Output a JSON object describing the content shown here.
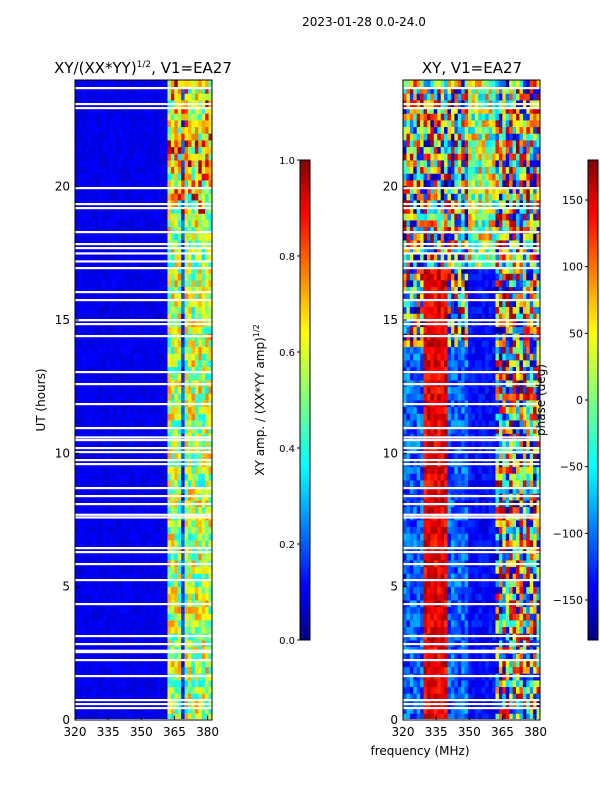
{
  "figure": {
    "suptitle": "2023-01-28 0.0-24.0",
    "xlabel": "frequency (MHz)"
  },
  "chart_data": [
    {
      "type": "heatmap",
      "title": "XY/(XX*YY)^1/2, V1=EA27",
      "title_main": "XY/(XX*YY)",
      "title_exp": "1/2",
      "title_tail": ", V1=EA27",
      "ylabel": "UT (hours)",
      "xlim": [
        320,
        382
      ],
      "ylim": [
        0,
        24
      ],
      "xticks": [
        320,
        335,
        350,
        365,
        380
      ],
      "yticks": [
        0,
        5,
        10,
        15,
        20
      ],
      "colorbar": {
        "label": "XY amp. / (XX*YY amp)^1/2",
        "label_main": "XY amp. / (XX*YY amp)",
        "label_exp": "1/2",
        "range": [
          0.0,
          1.0
        ],
        "ticks": [
          "0.0",
          "0.2",
          "0.4",
          "0.6",
          "0.8",
          "1.0"
        ],
        "colormap": "jet"
      },
      "description": "Mostly low values (~0.1) across 320-360 MHz; bright columns 0.4-0.9 between ~362-382 MHz; many flagged (white) time rows."
    },
    {
      "type": "heatmap",
      "title": "XY, V1=EA27",
      "ylabel": "",
      "xlim": [
        320,
        382
      ],
      "ylim": [
        0,
        24
      ],
      "xticks": [
        320,
        335,
        350,
        365,
        380
      ],
      "yticks": [
        0,
        5,
        10,
        15,
        20
      ],
      "colorbar": {
        "label": "phase (deg)",
        "range": [
          -180,
          180
        ],
        "ticks": [
          "−150",
          "−100",
          "−50",
          "0",
          "50",
          "100",
          "150"
        ],
        "colormap": "jet"
      },
      "description": "Phase in degrees; red band near 330-340 MHz, mixed phases 360-382 MHz, flagged rows white."
    }
  ],
  "colors": {
    "jet": [
      "#00007f",
      "#0000ff",
      "#007fff",
      "#00ffff",
      "#7fff7f",
      "#ffff00",
      "#ff7f00",
      "#ff0000",
      "#7f0000"
    ]
  }
}
